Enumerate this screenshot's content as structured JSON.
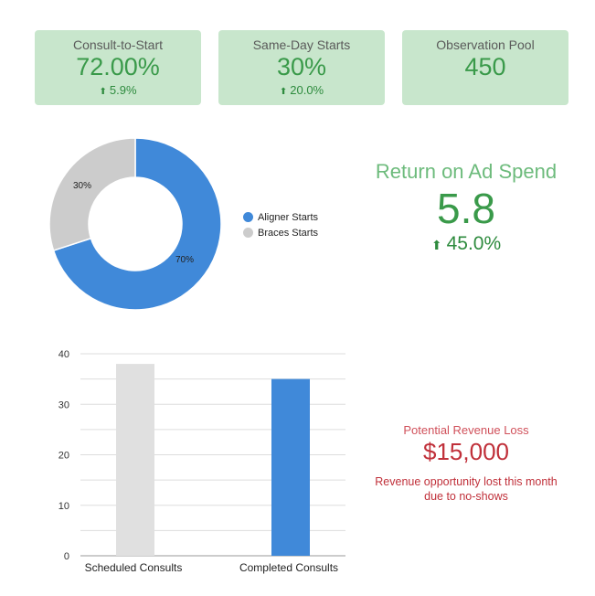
{
  "cards": [
    {
      "title": "Consult-to-Start",
      "value": "72.00%",
      "delta": "5.9%",
      "delta_icon": "arrow-up-icon"
    },
    {
      "title": "Same-Day Starts",
      "value": "30%",
      "delta": "20.0%",
      "delta_icon": "arrow-up-icon"
    },
    {
      "title": "Observation Pool",
      "value": "450"
    }
  ],
  "roas": {
    "title": "Return on Ad Spend",
    "value": "5.8",
    "delta": "45.0%",
    "delta_icon": "arrow-up-icon"
  },
  "loss": {
    "title": "Potential Revenue Loss",
    "value": "$15,000",
    "desc_line1": "Revenue opportunity lost this month",
    "desc_line2": "due to no-shows"
  },
  "colors": {
    "aligner": "#4089d9",
    "braces": "#cccccc",
    "scheduled": "#e0e0e0",
    "completed": "#4089d9"
  },
  "chart_data": [
    {
      "type": "pie",
      "donut": true,
      "categories": [
        "Aligner Starts",
        "Braces Starts"
      ],
      "values": [
        70,
        30
      ],
      "labels": [
        "70%",
        "30%"
      ],
      "legend_position": "right"
    },
    {
      "type": "bar",
      "categories": [
        "Scheduled Consults",
        "Completed Consults"
      ],
      "values": [
        38,
        35
      ],
      "ylim": [
        0,
        40
      ],
      "yticks": [
        0,
        10,
        20,
        30,
        40
      ],
      "grid": true,
      "title": "",
      "xlabel": "",
      "ylabel": ""
    }
  ]
}
